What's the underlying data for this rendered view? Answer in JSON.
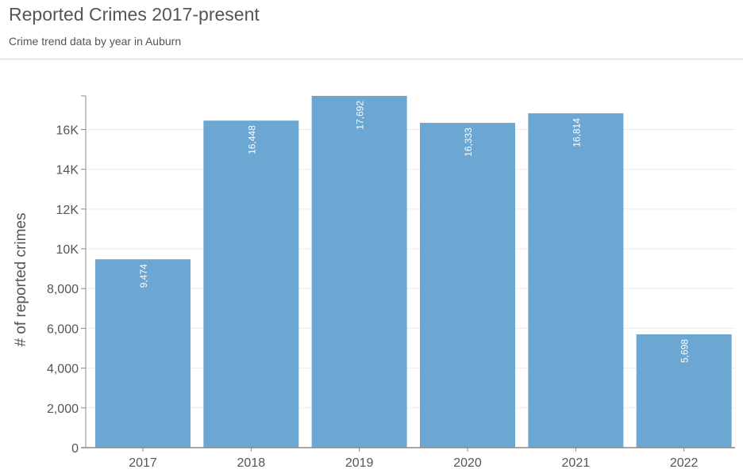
{
  "header": {
    "title": "Reported Crimes 2017-present",
    "subtitle": "Crime trend data by year in Auburn"
  },
  "chart_data": {
    "type": "bar",
    "title": "Reported Crimes 2017-present",
    "subtitle": "Crime trend data by year in Auburn",
    "xlabel": "",
    "ylabel": "# of reported crimes",
    "categories": [
      "2017",
      "2018",
      "2019",
      "2020",
      "2021",
      "2022"
    ],
    "values": [
      9474,
      16448,
      17692,
      16333,
      16814,
      5698
    ],
    "data_labels": [
      "9,474",
      "16,448",
      "17,692",
      "16,333",
      "16,814",
      "5,698"
    ],
    "ylim": [
      0,
      17692
    ],
    "yticks": [
      0,
      2000,
      4000,
      6000,
      8000,
      10000,
      12000,
      14000,
      16000
    ],
    "ytick_labels": [
      "0",
      "2,000",
      "4,000",
      "6,000",
      "8,000",
      "10K",
      "12K",
      "14K",
      "16K"
    ],
    "grid": true,
    "legend": "none",
    "colors": {
      "bar": "#6ca6d2",
      "axis": "#888888",
      "grid": "#ebebeb",
      "text": "#555555",
      "label": "#ffffff"
    }
  }
}
